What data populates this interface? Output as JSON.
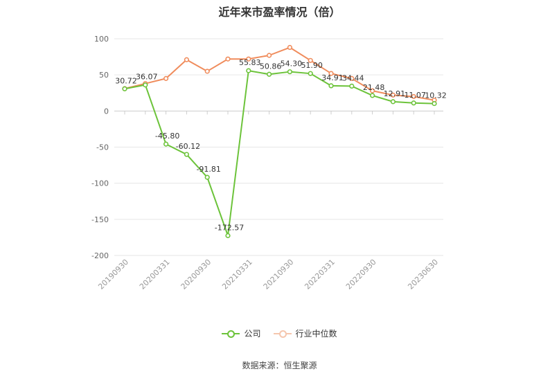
{
  "chart_data": {
    "type": "line",
    "title": "近年来市盈率情况（倍）",
    "source": "数据来源：恒生聚源",
    "x_ticks": [
      "20190930",
      "20200331",
      "20200930",
      "20210331",
      "20210930",
      "20220331",
      "20220930",
      "20230630"
    ],
    "x": [
      "20190930",
      "20191231",
      "20200331",
      "20200630",
      "20200930",
      "20201231",
      "20210331",
      "20210630",
      "20210930",
      "20211231",
      "20220331",
      "20220630",
      "20220930",
      "20221231",
      "20230331",
      "20230630"
    ],
    "ylim": [
      -200,
      100
    ],
    "y_ticks": [
      100,
      50,
      0,
      -50,
      -100,
      -150,
      -200
    ],
    "grid": true,
    "legend_position": "bottom",
    "series": [
      {
        "name": "公司",
        "color": "#6cc33a",
        "values": [
          30.72,
          36.07,
          -45.8,
          -60.12,
          -91.81,
          -172.57,
          55.83,
          50.86,
          54.3,
          51.9,
          34.91,
          34.44,
          21.48,
          12.91,
          11.07,
          10.32
        ],
        "labels": [
          "30.72",
          "36.07",
          "-45.80",
          "-60.12",
          "-91.81",
          "-172.57",
          "55.83",
          "50.86",
          "54.30",
          "51.90",
          "34.91",
          "34.44",
          "21.48",
          "12.91",
          "11.07",
          "10.32"
        ]
      },
      {
        "name": "行业中位数",
        "color": "#f08c5c",
        "values": [
          31,
          38,
          45,
          71,
          55,
          72,
          72,
          77,
          88,
          70,
          52,
          45,
          28,
          22,
          20,
          15
        ]
      }
    ]
  }
}
